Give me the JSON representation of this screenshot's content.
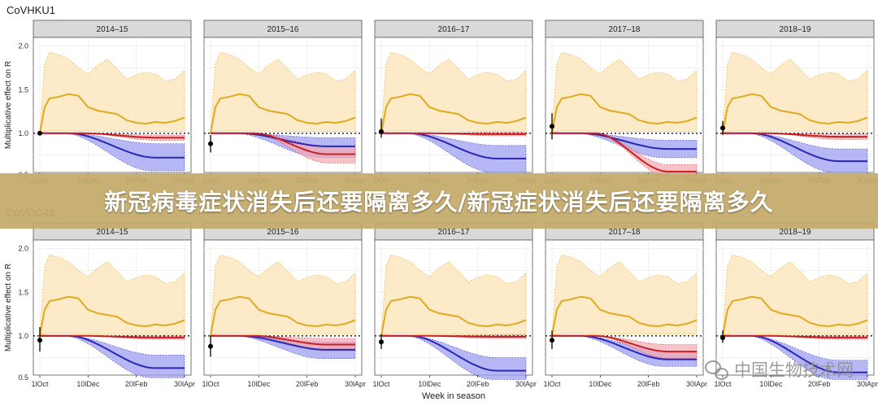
{
  "banner_text": "新冠病毒症状消失后还要隔离多久/新冠症状消失后还要隔离多久",
  "watermark_text": "中国生物技术网",
  "colors": {
    "yellow_line": "#e0aa1e",
    "yellow_band": "#fbe6bf",
    "red_line": "#cc1f1f",
    "red_band": "#f3a9b2",
    "blue_line": "#2a27b5",
    "blue_band": "#9e9ff0",
    "strip_bg": "#d9d9d9",
    "panel_border": "#555555"
  },
  "chart_data": [
    {
      "type": "line",
      "title": "CoVHKU1",
      "ylabel": "Multiplicative effect on R",
      "xlabel": "",
      "ylim": [
        0.55,
        2.1
      ],
      "yticks": [
        "0.5",
        "1.0",
        "1.5",
        "2.0"
      ],
      "xlim": [
        0,
        30
      ],
      "xticks": [
        {
          "x": 0,
          "label": "1lOct"
        },
        {
          "x": 10,
          "label": "10lDec"
        },
        {
          "x": 20,
          "label": "20lFeb"
        },
        {
          "x": 30,
          "label": "30lApr"
        }
      ],
      "reference_line": 1.0,
      "panels": [
        {
          "label": "2014–15",
          "point": {
            "x": 0,
            "y": 1.0,
            "lo": 0.98,
            "hi": 1.02
          },
          "yellow_end": 1.18,
          "red_end": 0.95,
          "blue_end": 0.72,
          "blue_hi": 0.88,
          "blue_lo": 0.57,
          "red_hi": 0.98,
          "red_lo": 0.92
        },
        {
          "label": "2015–16",
          "point": {
            "x": 0,
            "y": 0.88,
            "lo": 0.78,
            "hi": 0.98
          },
          "yellow_end": 1.18,
          "red_end": 0.76,
          "blue_end": 0.85,
          "blue_hi": 0.95,
          "blue_lo": 0.72,
          "red_hi": 0.85,
          "red_lo": 0.66
        },
        {
          "label": "2016–17",
          "point": {
            "x": 0,
            "y": 1.02,
            "lo": 0.95,
            "hi": 1.17
          },
          "yellow_end": 1.18,
          "red_end": 0.99,
          "blue_end": 0.71,
          "blue_hi": 0.86,
          "blue_lo": 0.55,
          "red_hi": 1.01,
          "red_lo": 0.97
        },
        {
          "label": "2017–18",
          "point": {
            "x": 0,
            "y": 1.08,
            "lo": 0.93,
            "hi": 1.23
          },
          "yellow_end": 1.18,
          "red_end": 0.56,
          "blue_end": 0.82,
          "blue_hi": 0.92,
          "blue_lo": 0.72,
          "red_hi": 0.64,
          "red_lo": 0.5
        },
        {
          "label": "2018–19",
          "point": {
            "x": 0,
            "y": 1.06,
            "lo": 0.98,
            "hi": 1.14
          },
          "yellow_end": 1.18,
          "red_end": 0.96,
          "blue_end": 0.68,
          "blue_hi": 0.82,
          "blue_lo": 0.55,
          "red_hi": 0.99,
          "red_lo": 0.93
        }
      ]
    },
    {
      "type": "line",
      "title": "CoVOC43",
      "ylabel": "Multiplicative effect on R",
      "xlabel": "Week in season",
      "ylim": [
        0.55,
        2.1
      ],
      "yticks": [
        "0.5",
        "1.0",
        "1.5",
        "2.0"
      ],
      "xlim": [
        0,
        30
      ],
      "xticks": [
        {
          "x": 0,
          "label": "1lOct"
        },
        {
          "x": 10,
          "label": "10lDec"
        },
        {
          "x": 20,
          "label": "20lFeb"
        },
        {
          "x": 30,
          "label": "30lApr"
        }
      ],
      "reference_line": 1.0,
      "panels": [
        {
          "label": "2014–15",
          "point": {
            "x": 0,
            "y": 0.95,
            "lo": 0.82,
            "hi": 1.1
          },
          "yellow_end": 1.18,
          "red_end": 0.98,
          "blue_end": 0.63,
          "blue_hi": 0.78,
          "blue_lo": 0.52,
          "red_hi": 1.0,
          "red_lo": 0.96
        },
        {
          "label": "2015–16",
          "point": {
            "x": 0,
            "y": 0.88,
            "lo": 0.76,
            "hi": 1.0
          },
          "yellow_end": 1.18,
          "red_end": 0.9,
          "blue_end": 0.84,
          "blue_hi": 0.93,
          "blue_lo": 0.74,
          "red_hi": 0.97,
          "red_lo": 0.83
        },
        {
          "label": "2016–17",
          "point": {
            "x": 0,
            "y": 0.93,
            "lo": 0.85,
            "hi": 1.02
          },
          "yellow_end": 1.18,
          "red_end": 0.99,
          "blue_end": 0.6,
          "blue_hi": 0.75,
          "blue_lo": 0.5,
          "red_hi": 1.01,
          "red_lo": 0.97
        },
        {
          "label": "2017–18",
          "point": {
            "x": 0,
            "y": 0.95,
            "lo": 0.85,
            "hi": 1.06
          },
          "yellow_end": 1.18,
          "red_end": 0.82,
          "blue_end": 0.73,
          "blue_hi": 0.82,
          "blue_lo": 0.65,
          "red_hi": 0.9,
          "red_lo": 0.74
        },
        {
          "label": "2018–19",
          "point": {
            "x": 0,
            "y": 0.98,
            "lo": 0.92,
            "hi": 1.06
          },
          "yellow_end": 1.18,
          "red_end": 0.98,
          "blue_end": 0.58,
          "blue_hi": 0.72,
          "blue_lo": 0.5,
          "red_hi": 1.0,
          "red_lo": 0.96
        }
      ]
    }
  ]
}
